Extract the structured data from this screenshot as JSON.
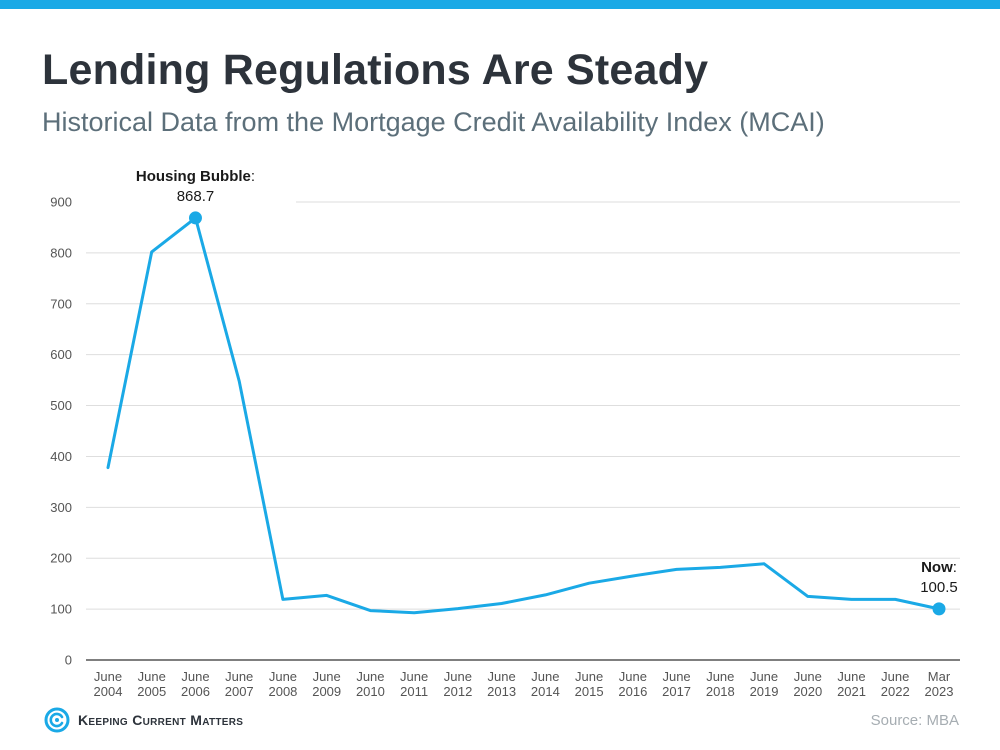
{
  "header": {
    "title": "Lending Regulations Are Steady",
    "subtitle": "Historical Data from the Mortgage Credit Availability Index (MCAI)"
  },
  "footer": {
    "brand": "Keeping Current Matters",
    "source": "Source: MBA"
  },
  "colors": {
    "accent": "#1aa9e6",
    "title": "#2d333b",
    "subtitle": "#5c6f7a"
  },
  "chart_data": {
    "type": "line",
    "title": "",
    "xlabel": "",
    "ylabel": "",
    "ylim": [
      0,
      900
    ],
    "yticks": [
      0,
      100,
      200,
      300,
      400,
      500,
      600,
      700,
      800,
      900
    ],
    "grid": true,
    "categories": [
      [
        "June",
        "2004"
      ],
      [
        "June",
        "2005"
      ],
      [
        "June",
        "2006"
      ],
      [
        "June",
        "2007"
      ],
      [
        "June",
        "2008"
      ],
      [
        "June",
        "2009"
      ],
      [
        "June",
        "2010"
      ],
      [
        "June",
        "2011"
      ],
      [
        "June",
        "2012"
      ],
      [
        "June",
        "2013"
      ],
      [
        "June",
        "2014"
      ],
      [
        "June",
        "2015"
      ],
      [
        "June",
        "2016"
      ],
      [
        "June",
        "2017"
      ],
      [
        "June",
        "2018"
      ],
      [
        "June",
        "2019"
      ],
      [
        "June",
        "2020"
      ],
      [
        "June",
        "2021"
      ],
      [
        "June",
        "2022"
      ],
      [
        "Mar",
        "2023"
      ]
    ],
    "series": [
      {
        "values": [
          378,
          802,
          868.7,
          548,
          119,
          127,
          97,
          93,
          101,
          111,
          128,
          151,
          165,
          178,
          182,
          189,
          125,
          119,
          119,
          100.5
        ]
      }
    ],
    "annotations": [
      {
        "index": 2,
        "label": "Housing Bubble",
        "suffix": ":",
        "value": "868.7"
      },
      {
        "index": 19,
        "label": "Now",
        "suffix": ":",
        "value": "100.5"
      }
    ]
  }
}
